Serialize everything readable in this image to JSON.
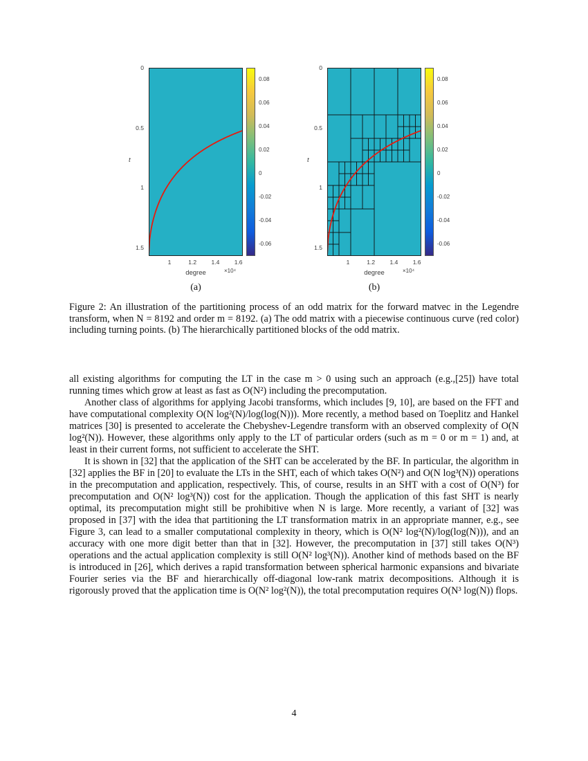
{
  "figure": {
    "xlabel": "degree",
    "ylabel": "t",
    "x_exponent": "×10⁴",
    "x_ticks": [
      "1",
      "1.2",
      "1.4",
      "1.6"
    ],
    "y_ticks": [
      "0",
      "0.5",
      "1",
      "1.5"
    ],
    "colorbar_ticks": [
      "0.08",
      "0.06",
      "0.04",
      "0.02",
      "0",
      "-0.02",
      "-0.04",
      "-0.06"
    ],
    "subfigures": [
      {
        "label": "(a)"
      },
      {
        "label": "(b)"
      }
    ],
    "colors": {
      "matrix_bg": "#25b0c5",
      "curve": "#e81a0c",
      "partition": "#101010",
      "colorbar_stops": [
        "#f9fb0e",
        "#f6c93f",
        "#d1bb59",
        "#7fbf7b",
        "#33b8a1",
        "#079ccf",
        "#127dd8",
        "#0f5cdd",
        "#352a87"
      ]
    },
    "caption": "Figure 2: An illustration of the partitioning process of an odd matrix for the forward matvec in the Legendre transform, when N = 8192 and order m = 8192. (a) The odd matrix with a piecewise continuous curve (red color) including turning points. (b) The hierarchically partitioned blocks of the odd matrix."
  },
  "body": {
    "para1": "all existing algorithms for computing the LT in the case m > 0 using such an approach (e.g.,[25]) have total running times which grow at least as fast as O(N²) including the precomputation.",
    "para2": "Another class of algorithms for applying Jacobi transforms, which includes [9, 10], are based on the FFT and have computational complexity O(N log²(N)/log(log(N))). More recently, a method based on Toeplitz and Hankel matrices [30] is presented to accelerate the Chebyshev-Legendre transform with an observed complexity of O(N log²(N)). However, these algorithms only apply to the LT of particular orders (such as m = 0 or m = 1) and, at least in their current forms, not sufficient to accelerate the SHT.",
    "para3": "It is shown in [32] that the application of the SHT can be accelerated by the BF. In particular, the algorithm in [32] applies the BF in [20] to evaluate the LTs in the SHT, each of which takes O(N²) and O(N log³(N)) operations in the precomputation and application, respectively. This, of course, results in an SHT with a cost of O(N³) for precomputation and O(N² log³(N)) cost for the application. Though the application of this fast SHT is nearly optimal, its precomputation might still be prohibitive when N is large. More recently, a variant of [32] was proposed in [37] with the idea that partitioning the LT transformation matrix in an appropriate manner, e.g., see Figure 3, can lead to a smaller computational complexity in theory, which is O(N² log²(N)/log(log(N))), and an accuracy with one more digit better than that in [32]. However, the precomputation in [37] still takes O(N³) operations and the actual application complexity is still O(N² log³(N)). Another kind of methods based on the BF is introduced in [26], which derives a rapid transformation between spherical harmonic expansions and bivariate Fourier series via the BF and hierarchically off-diagonal low-rank matrix decompositions. Although it is rigorously proved that the application time is O(N² log²(N)), the total precomputation requires O(N³ log(N)) flops."
  },
  "page_number": "4"
}
